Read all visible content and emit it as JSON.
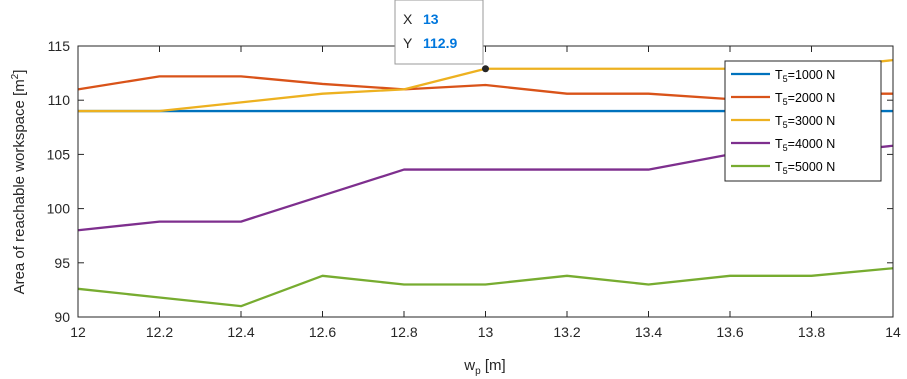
{
  "chart_data": {
    "type": "line",
    "xlabel_main": "w",
    "xlabel_sub": "p",
    "xlabel_unit": " [m]",
    "ylabel_main": "Area of reachable workspace  [m",
    "ylabel_sup": "2",
    "ylabel_end": "]",
    "xlim": [
      12,
      14
    ],
    "ylim": [
      90,
      115
    ],
    "xticks": [
      "12",
      "12.2",
      "12.4",
      "12.6",
      "12.8",
      "13",
      "13.2",
      "13.4",
      "13.6",
      "13.8",
      "14"
    ],
    "yticks": [
      "90",
      "95",
      "100",
      "105",
      "110",
      "115"
    ],
    "x": [
      12,
      12.2,
      12.4,
      12.6,
      12.8,
      13,
      13.2,
      13.4,
      13.6,
      13.8,
      14
    ],
    "grid": false,
    "legend_position": "top-right",
    "series": [
      {
        "label_main": "T",
        "label_sub": "5",
        "label_end": "=1000  N",
        "color": "#0072bd",
        "values": [
          109,
          109,
          109,
          109,
          109,
          109,
          109,
          109,
          109,
          109,
          109
        ]
      },
      {
        "label_main": "T",
        "label_sub": "5",
        "label_end": "=2000  N",
        "color": "#d95319",
        "values": [
          111,
          112.2,
          112.2,
          111.5,
          111,
          111.4,
          110.6,
          110.6,
          110.1,
          110.6,
          110.6
        ]
      },
      {
        "label_main": "T",
        "label_sub": "5",
        "label_end": "=3000  N",
        "color": "#edb120",
        "values": [
          109,
          109,
          109.8,
          110.6,
          111,
          112.9,
          112.9,
          112.9,
          112.9,
          112.9,
          113.7
        ]
      },
      {
        "label_main": "T",
        "label_sub": "5",
        "label_end": "=4000  N",
        "color": "#7e2f8e",
        "values": [
          98,
          98.8,
          98.8,
          101.2,
          103.6,
          103.6,
          103.6,
          103.6,
          105,
          105,
          105.8
        ]
      },
      {
        "label_main": "T",
        "label_sub": "5",
        "label_end": "=5000  N",
        "color": "#77ac30",
        "values": [
          92.6,
          91.8,
          91,
          93.8,
          93,
          93,
          93.8,
          93,
          93.8,
          93.8,
          94.5
        ]
      }
    ],
    "datatip": {
      "x_key": "X",
      "x_value": "13",
      "y_key": "Y",
      "y_value": "112.9",
      "point_x": 13,
      "point_y": 112.9
    }
  }
}
